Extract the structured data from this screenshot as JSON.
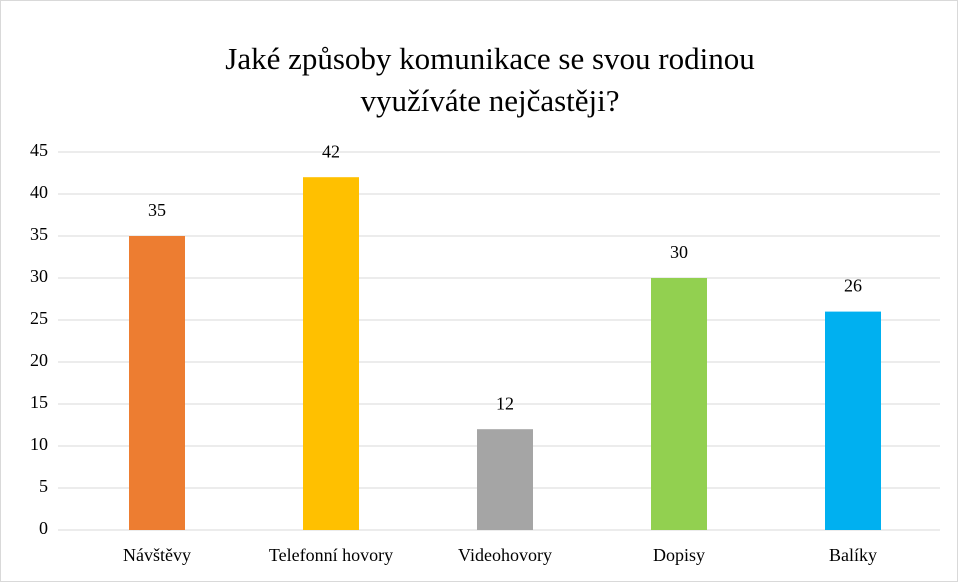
{
  "chart_data": {
    "type": "bar",
    "title": [
      "Jaké způsoby komunikace se svou rodinou",
      "využíváte nejčastěji?"
    ],
    "categories": [
      "Návštěvy",
      "Telefonní hovory",
      "Videohovory",
      "Dopisy",
      "Balíky"
    ],
    "values": [
      35,
      42,
      12,
      30,
      26
    ],
    "colors": [
      "#ed7d31",
      "#ffc000",
      "#a5a5a5",
      "#92d050",
      "#00b0f0"
    ],
    "ylim": [
      0,
      45
    ],
    "yticks": [
      0,
      5,
      10,
      15,
      20,
      25,
      30,
      35,
      40,
      45
    ],
    "grid": true
  }
}
